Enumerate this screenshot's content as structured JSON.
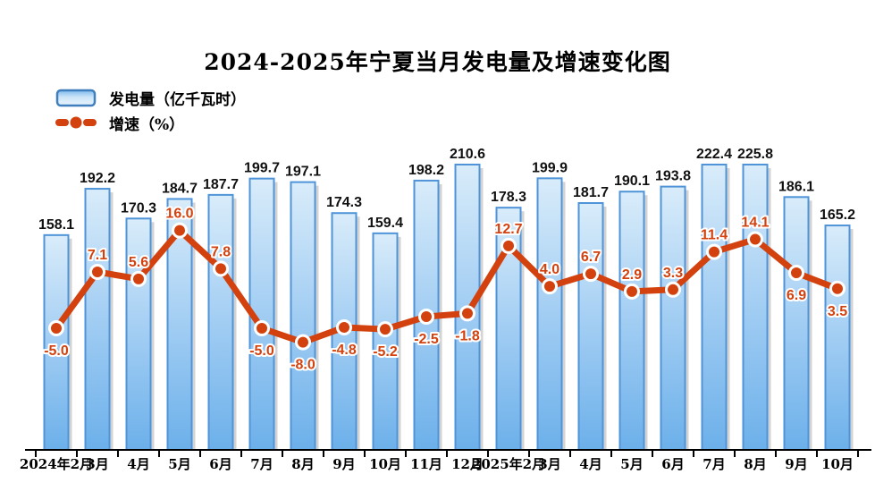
{
  "chart_data": {
    "type": "bar",
    "combo": "bar+line",
    "title": "2024-2025年宁夏当月发电量及增速变化图",
    "categories": [
      "2024年2月",
      "3月",
      "4月",
      "5月",
      "6月",
      "7月",
      "8月",
      "9月",
      "10月",
      "11月",
      "12月",
      "2025年2月",
      "3月",
      "4月",
      "5月",
      "6月",
      "7月",
      "8月",
      "9月",
      "10月"
    ],
    "series": [
      {
        "name": "发电量（亿千瓦时）",
        "type": "bar",
        "values": [
          158.1,
          192.2,
          170.3,
          184.7,
          187.7,
          199.7,
          197.1,
          174.3,
          159.4,
          198.2,
          210.6,
          178.3,
          199.9,
          181.7,
          190.1,
          193.8,
          222.4,
          225.8,
          186.1,
          165.2
        ],
        "fill_top": "#d9ecfa",
        "fill_mid": "#9ccaf2",
        "fill_bottom": "#6cb0ea",
        "border": "#4f94d8",
        "shadow": "#a8a8a8"
      },
      {
        "name": "增速（%）",
        "type": "line",
        "values": [
          -5.0,
          7.1,
          5.6,
          16.0,
          7.8,
          -5.0,
          -8.0,
          -4.8,
          -5.2,
          -2.5,
          -1.8,
          12.7,
          4.0,
          6.7,
          2.9,
          3.3,
          11.4,
          14.1,
          6.9,
          3.5
        ],
        "color": "#d2410e",
        "marker": "circle-white-ring"
      }
    ],
    "value_labels_shown": true,
    "label_decimals": 1,
    "axes": {
      "x_visible": true,
      "y_visible": false,
      "grid": false,
      "bar_plot_clip_max": 210
    },
    "legend_position": "top-left",
    "axis_color": "#000000",
    "bar_label_color": "#111111",
    "line_label_color": "#d2410e"
  }
}
